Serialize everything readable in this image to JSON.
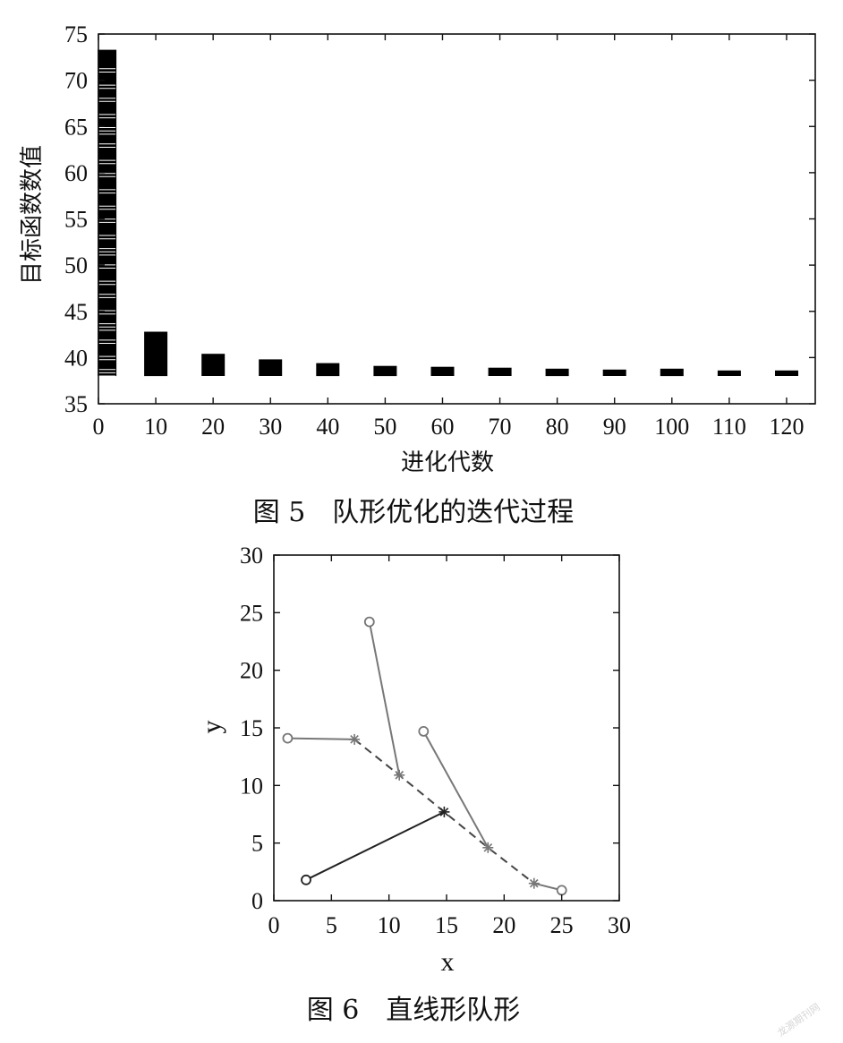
{
  "chart_data": [
    {
      "type": "bar",
      "caption": "图 5　队形优化的迭代过程",
      "xlabel": "进化代数",
      "ylabel": "目标函数数值",
      "xlim": [
        0,
        125
      ],
      "ylim": [
        35,
        75
      ],
      "x_ticks": [
        "0",
        "10",
        "20",
        "30",
        "40",
        "50",
        "60",
        "70",
        "80",
        "90",
        "100",
        "110",
        "120"
      ],
      "y_ticks": [
        "35",
        "40",
        "45",
        "50",
        "55",
        "60",
        "65",
        "70",
        "75"
      ],
      "grid": false,
      "bars": [
        {
          "x": 1.5,
          "low": 38.0,
          "high": 73.3
        },
        {
          "x": 10,
          "low": 38.0,
          "high": 42.8
        },
        {
          "x": 20,
          "low": 38.0,
          "high": 40.4
        },
        {
          "x": 30,
          "low": 38.0,
          "high": 39.8
        },
        {
          "x": 40,
          "low": 38.0,
          "high": 39.4
        },
        {
          "x": 50,
          "low": 38.0,
          "high": 39.1
        },
        {
          "x": 60,
          "low": 38.0,
          "high": 39.0
        },
        {
          "x": 70,
          "low": 38.0,
          "high": 38.9
        },
        {
          "x": 80,
          "low": 38.0,
          "high": 38.8
        },
        {
          "x": 90,
          "low": 38.0,
          "high": 38.7
        },
        {
          "x": 100,
          "low": 38.0,
          "high": 38.8
        },
        {
          "x": 110,
          "low": 38.0,
          "high": 38.6
        },
        {
          "x": 120,
          "low": 38.0,
          "high": 38.6
        }
      ]
    },
    {
      "type": "line",
      "caption": "图 6　直线形队形",
      "xlabel": "x",
      "ylabel": "y",
      "xlim": [
        0,
        30
      ],
      "ylim": [
        0,
        30
      ],
      "x_ticks": [
        "0",
        "5",
        "10",
        "15",
        "20",
        "25",
        "30"
      ],
      "y_ticks": [
        "0",
        "5",
        "10",
        "15",
        "20",
        "25",
        "30"
      ],
      "grid": false,
      "series": [
        {
          "color": "#777777",
          "style": "solid",
          "points": [
            [
              1.2,
              14.1
            ],
            [
              7.0,
              14.0
            ]
          ]
        },
        {
          "color": "#777777",
          "style": "solid",
          "points": [
            [
              8.3,
              24.2
            ],
            [
              10.9,
              10.9
            ]
          ]
        },
        {
          "color": "#777777",
          "style": "solid",
          "points": [
            [
              13.0,
              14.7
            ],
            [
              18.6,
              4.6
            ]
          ]
        },
        {
          "color": "#777777",
          "style": "solid",
          "points": [
            [
              25.0,
              0.9
            ],
            [
              22.6,
              1.5
            ]
          ]
        },
        {
          "color": "#222222",
          "style": "solid",
          "points": [
            [
              2.8,
              1.8
            ],
            [
              14.8,
              7.7
            ]
          ]
        },
        {
          "color": "#444444",
          "style": "dashed",
          "points": [
            [
              7.0,
              14.0
            ],
            [
              10.9,
              10.9
            ],
            [
              14.8,
              7.7
            ],
            [
              18.6,
              4.6
            ],
            [
              22.6,
              1.5
            ]
          ]
        }
      ],
      "start_markers": "circle",
      "end_markers": "star"
    }
  ],
  "watermark": "龙源期刊网"
}
